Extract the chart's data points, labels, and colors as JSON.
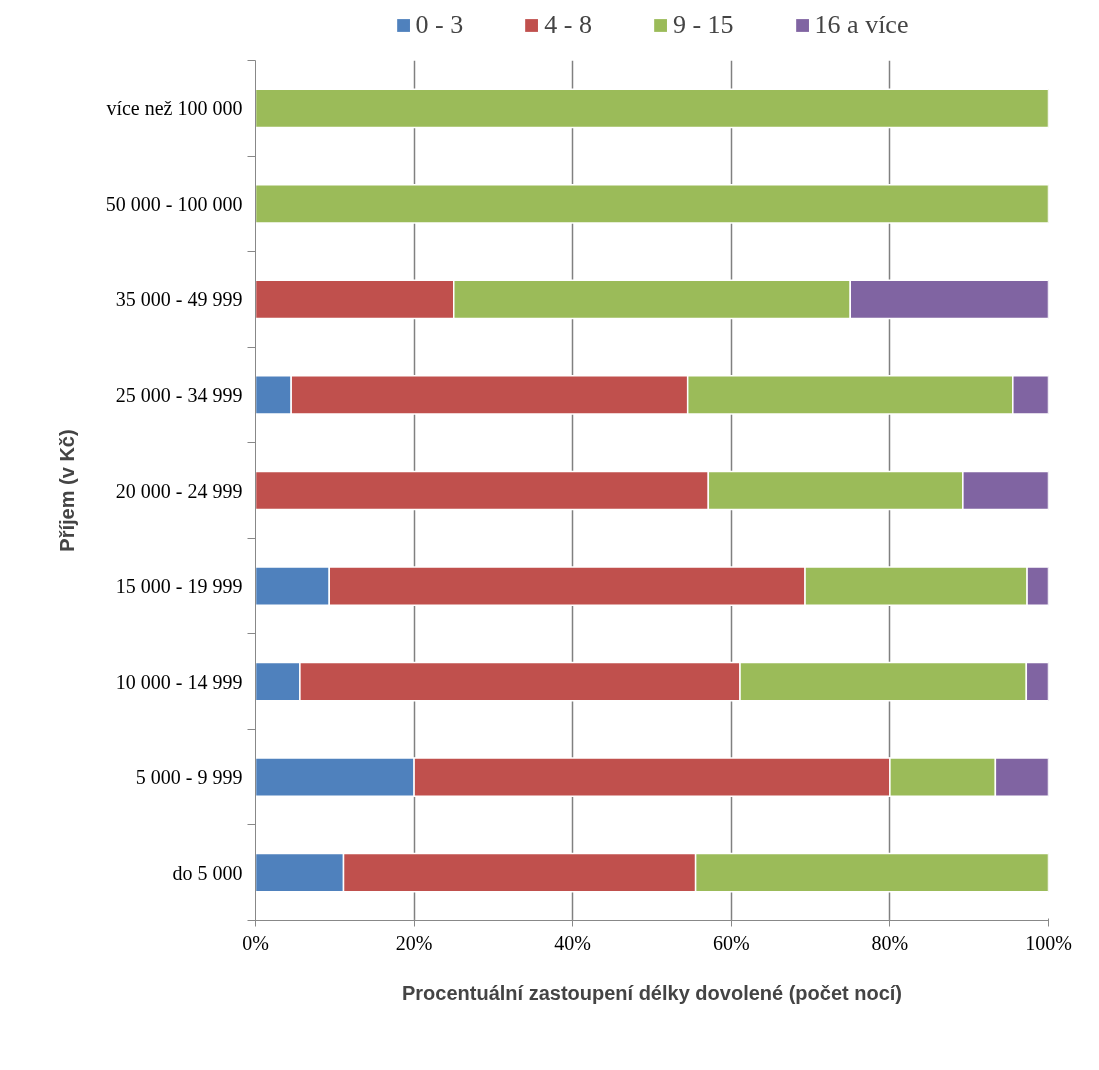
{
  "chart_data": {
    "type": "bar",
    "orientation": "horizontal",
    "stacked": true,
    "xlabel": "Procentuální zastoupení délky dovolené (počet nocí)",
    "ylabel": "Příjem (v Kč)",
    "categories": [
      "více než 100 000",
      "50 000 - 100 000",
      "35 000 - 49 999",
      "25 000 - 34 999",
      "20 000 - 24 999",
      "15 000 - 19 999",
      "10 000 - 14 999",
      "5 000 - 9 999",
      "do 5 000"
    ],
    "series": [
      {
        "name": "0 - 3",
        "color": "#4f81bd",
        "values": [
          0,
          0,
          0,
          4.5,
          0,
          9.3,
          5.6,
          20,
          11.1
        ]
      },
      {
        "name": "4 - 8",
        "color": "#c0504d",
        "values": [
          0,
          0,
          25,
          50,
          57.1,
          60,
          55.5,
          60,
          44.4
        ]
      },
      {
        "name": "9 - 15",
        "color": "#9bbb59",
        "values": [
          100,
          100,
          50,
          41,
          32.1,
          28,
          36.1,
          13.3,
          44.5
        ]
      },
      {
        "name": "16 a více",
        "color": "#8064a2",
        "values": [
          0,
          0,
          25,
          4.5,
          10.8,
          2.7,
          2.8,
          6.7,
          0
        ]
      }
    ],
    "xlim": [
      0,
      100
    ],
    "xticks": [
      {
        "value": 0,
        "label": "0%"
      },
      {
        "value": 20,
        "label": "20%"
      },
      {
        "value": 40,
        "label": "40%"
      },
      {
        "value": 60,
        "label": "60%"
      },
      {
        "value": 80,
        "label": "80%"
      },
      {
        "value": 100,
        "label": "100%"
      }
    ],
    "grid": "x",
    "legend": "top"
  }
}
